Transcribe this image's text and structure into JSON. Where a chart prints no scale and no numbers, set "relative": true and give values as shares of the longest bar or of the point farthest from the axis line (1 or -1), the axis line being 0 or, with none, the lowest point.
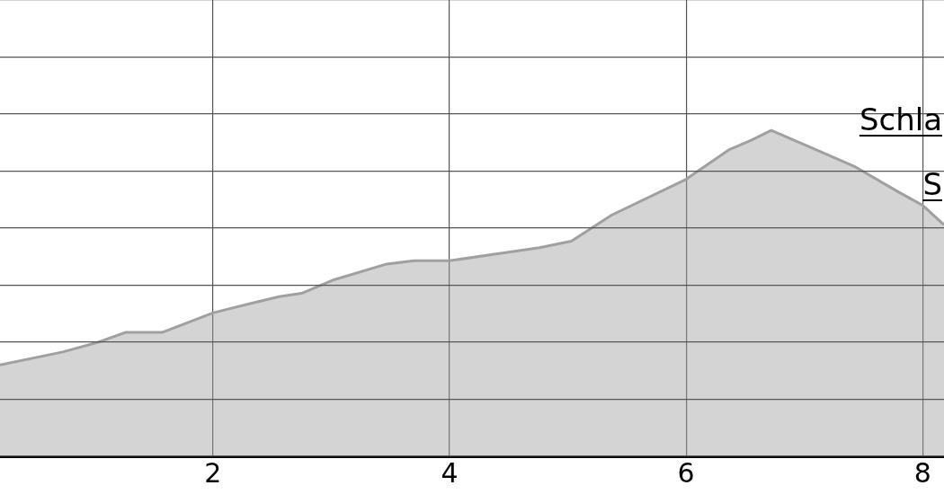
{
  "chart_data": {
    "type": "area",
    "relative": true,
    "x": [
      0.2,
      0.73,
      1.03,
      1.26,
      1.57,
      2.0,
      2.33,
      2.56,
      2.75,
      3.01,
      3.47,
      3.7,
      4.0,
      4.38,
      4.76,
      5.03,
      5.37,
      6.0,
      6.36,
      6.55,
      6.72,
      7.04,
      7.42,
      7.8,
      8.0,
      8.18
    ],
    "series": [
      {
        "color": "#a0a0a0",
        "values": [
          0.28,
          0.32,
          0.35,
          0.38,
          0.38,
          0.44,
          0.47,
          0.49,
          0.5,
          0.54,
          0.59,
          0.6,
          0.6,
          0.62,
          0.64,
          0.66,
          0.74,
          0.85,
          0.94,
          0.97,
          1,
          0.95,
          0.89,
          0.81,
          0.77,
          0.71
        ]
      }
    ],
    "xlim": [
      0.2,
      8.18
    ],
    "xticks": [
      2,
      4,
      6,
      8
    ],
    "tick_labels": "x",
    "grid": true,
    "legend": false,
    "annotations": [
      "Schla",
      "S"
    ]
  }
}
